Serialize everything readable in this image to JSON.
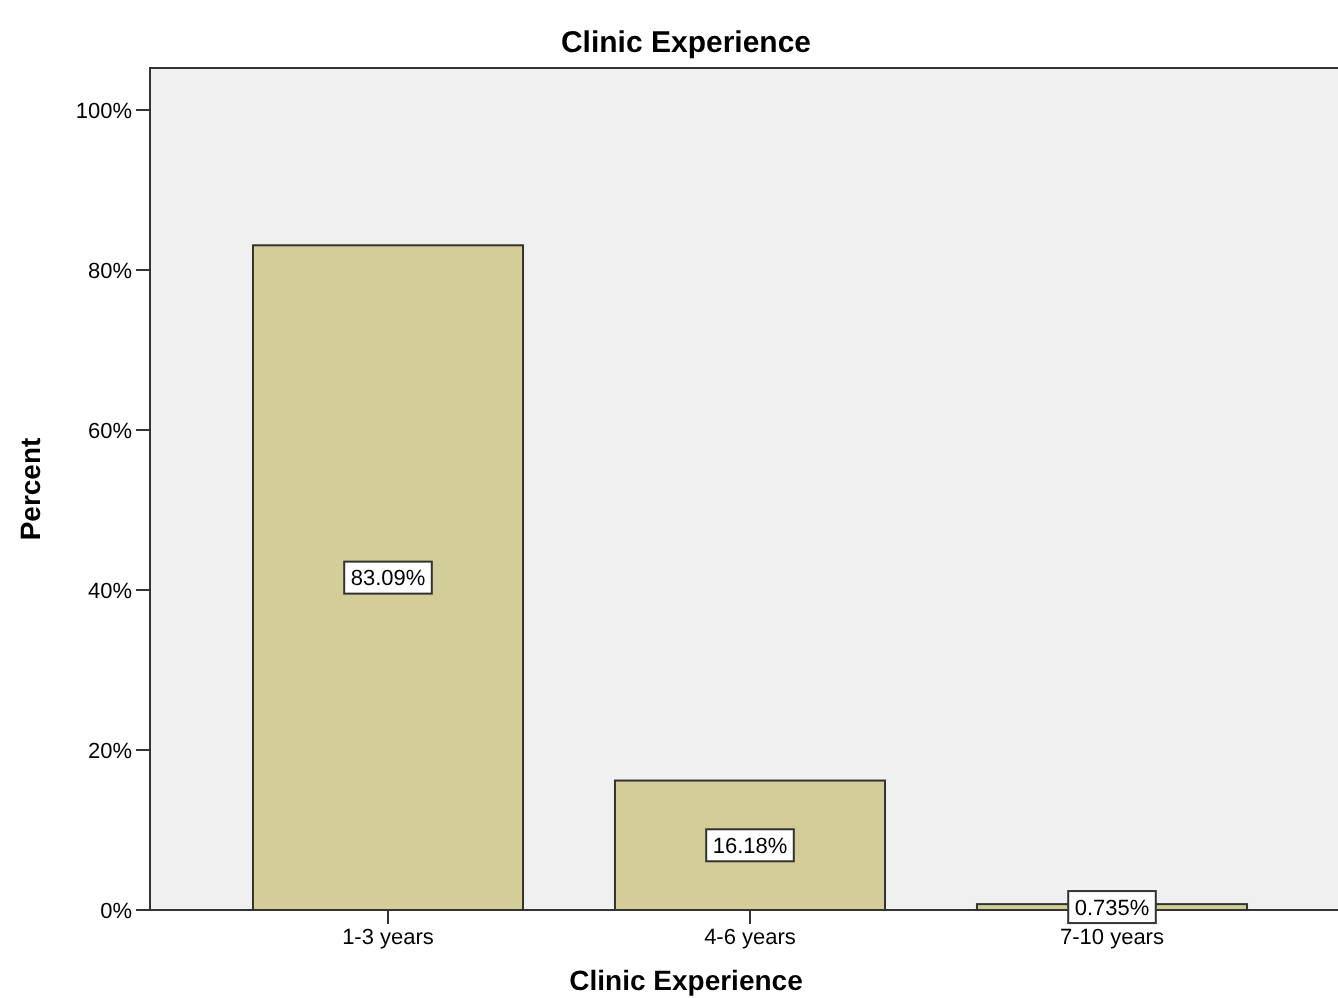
{
  "chart_data": {
    "type": "bar",
    "title": "Clinic Experience",
    "xlabel": "Clinic Experience",
    "ylabel": "Percent",
    "categories": [
      "1-3 years",
      "4-6 years",
      "7-10 years"
    ],
    "values": [
      83.09,
      16.18,
      0.735
    ],
    "value_labels": [
      "83.09%",
      "16.18%",
      "0.735%"
    ],
    "color": "#d3ce97",
    "ylim": [
      0,
      105.25
    ],
    "yticks": [
      {
        "value": 0,
        "label": "0%"
      },
      {
        "value": 20,
        "label": "20%"
      },
      {
        "value": 40,
        "label": "40%"
      },
      {
        "value": 60,
        "label": "60%"
      },
      {
        "value": 80,
        "label": "80%"
      },
      {
        "value": 100,
        "label": "100%"
      }
    ],
    "grid": false
  }
}
